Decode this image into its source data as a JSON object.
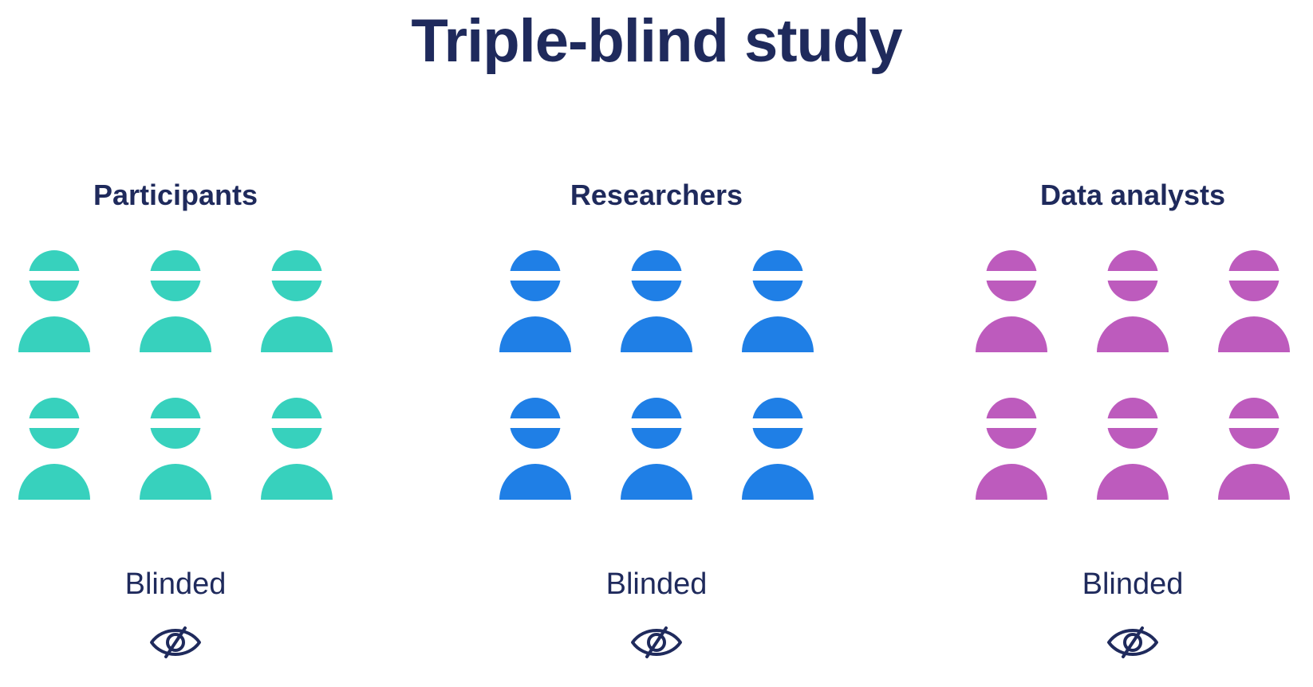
{
  "title": "Triple-blind study",
  "groups": [
    {
      "label": "Participants",
      "status": "Blinded",
      "color": "#37d1bd",
      "people_count": 6,
      "icon": "eye-slash-icon"
    },
    {
      "label": "Researchers",
      "status": "Blinded",
      "color": "#1f7fe6",
      "people_count": 6,
      "icon": "eye-slash-icon"
    },
    {
      "label": "Data analysts",
      "status": "Blinded",
      "color": "#bd5bbd",
      "people_count": 6,
      "icon": "eye-slash-icon"
    }
  ],
  "colors": {
    "text": "#1f2a5c",
    "background": "#ffffff"
  }
}
